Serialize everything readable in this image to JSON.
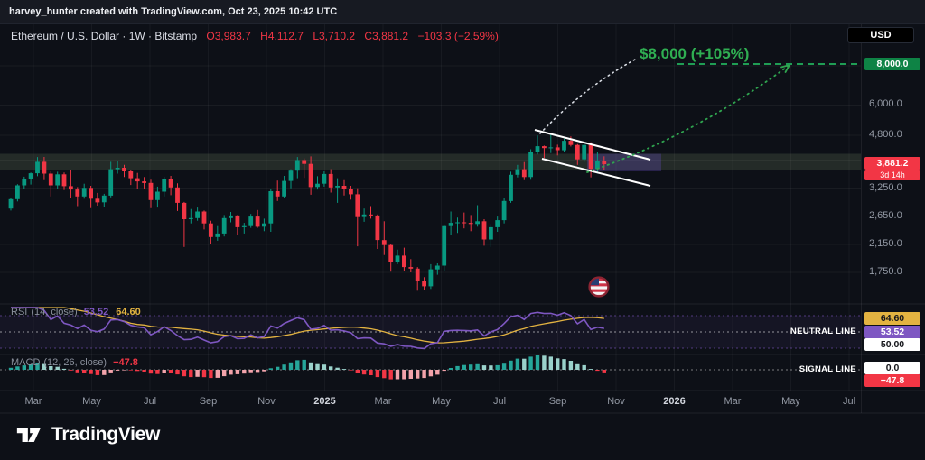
{
  "attribution": "harvey_hunter created with TradingView.com, Oct 23, 2025 10:42 UTC",
  "header": {
    "symbol_title": "Ethereum / U.S. Dollar · 1W · Bitstamp",
    "o_label": "O",
    "o": "3,983.7",
    "h_label": "H",
    "h": "4,112.7",
    "l_label": "L",
    "l": "3,710.2",
    "c_label": "C",
    "c": "3,881.2",
    "change": "−103.3 (−2.59%)",
    "currency_button": "USD"
  },
  "annotations": {
    "price_target": "$8,000 (+105%)",
    "neutral_line": "NEUTRAL LINE",
    "signal_line": "SIGNAL LINE"
  },
  "price_scale": {
    "target_badge": "8,000.0",
    "last_price_badge": "3,881.2",
    "countdown_badge": "3d 14h",
    "ticks": [
      {
        "text": "6,000.0",
        "value": 6000
      },
      {
        "text": "4,800.0",
        "value": 4800
      },
      {
        "text": "3,250.0",
        "value": 3250
      },
      {
        "text": "2,650.0",
        "value": 2650
      },
      {
        "text": "2,150.0",
        "value": 2150
      },
      {
        "text": "1,750.0",
        "value": 1750
      }
    ]
  },
  "rsi_panel": {
    "title": "RSI",
    "params": "(14, close)",
    "value": "53.52",
    "ma_value": "64.60",
    "badge_ma": "64.60",
    "badge_value": "53.52",
    "badge_neutral": "50.00"
  },
  "macd_panel": {
    "title": "MACD",
    "params": "(12, 26, close)",
    "value": "−47.8",
    "badge_zero": "0.0",
    "badge_value": "−47.8"
  },
  "time_axis": {
    "labels": [
      "Mar",
      "May",
      "Jul",
      "Sep",
      "Nov",
      "2025",
      "Mar",
      "May",
      "Jul",
      "Sep",
      "Nov",
      "2026",
      "Mar",
      "May",
      "Jul"
    ],
    "year_indices": [
      5,
      11
    ]
  },
  "footer": {
    "logo_text": "TradingView"
  },
  "colors": {
    "up": "#089981",
    "down": "#f23645",
    "target_green": "#2fae52",
    "dashed_green": "#1f9d54",
    "rsi_purple": "#7e57c2",
    "rsi_ma_yellow": "#e3b341",
    "badge_red": "#f23645",
    "badge_green_bg": "#0e8345"
  },
  "chart_data": {
    "type": "candlestick",
    "symbol": "Ethereum / U.S. Dollar",
    "exchange": "Bitstamp",
    "interval": "1W",
    "scale": "log",
    "y_axis_visible_ticks": [
      8000,
      6000,
      4800,
      3250,
      2650,
      2150,
      1750
    ],
    "x_axis_labels": [
      "Mar",
      "May",
      "Jul",
      "Sep",
      "Nov",
      "2025",
      "Mar",
      "May",
      "Jul",
      "Sep",
      "Nov",
      "2026",
      "Mar",
      "May",
      "Jul"
    ],
    "last_bar": {
      "open": 3983.7,
      "high": 4112.7,
      "low": 3710.2,
      "close": 3881.2,
      "change": -103.3,
      "change_pct": -2.59
    },
    "drawings": {
      "descending_channel": true,
      "target_line_price": 8000,
      "target_label": "$8,000 (+105%)",
      "target_pct_gain": 105,
      "highlight_zone_price_range": [
        3730,
        4190
      ]
    },
    "indicators": {
      "rsi": {
        "period": 14,
        "source": "close",
        "value": 53.52,
        "ma_value": 64.6,
        "levels": [
          70,
          50,
          30
        ]
      },
      "macd": {
        "fast": 12,
        "slow": 26,
        "source": "close",
        "histogram_value": -47.8
      }
    },
    "candles_ohlc": [
      [
        2800,
        3020,
        2760,
        3000
      ],
      [
        3000,
        3350,
        2950,
        3320
      ],
      [
        3320,
        3540,
        3230,
        3480
      ],
      [
        3480,
        3650,
        3340,
        3630
      ],
      [
        3630,
        4090,
        3550,
        3950
      ],
      [
        3950,
        4093,
        3450,
        3620
      ],
      [
        3620,
        3680,
        3060,
        3320
      ],
      [
        3320,
        3670,
        3240,
        3600
      ],
      [
        3600,
        3650,
        3210,
        3300
      ],
      [
        3300,
        3730,
        3020,
        3220
      ],
      [
        3220,
        3280,
        2850,
        3060
      ],
      [
        3060,
        3360,
        3010,
        3260
      ],
      [
        3260,
        3310,
        2810,
        3010
      ],
      [
        3010,
        3140,
        2860,
        2930
      ],
      [
        2930,
        3120,
        2830,
        3080
      ],
      [
        3080,
        3950,
        3040,
        3740
      ],
      [
        3740,
        3980,
        3620,
        3780
      ],
      [
        3780,
        3860,
        3530,
        3680
      ],
      [
        3680,
        3720,
        3330,
        3500
      ],
      [
        3500,
        3640,
        3240,
        3420
      ],
      [
        3420,
        3530,
        3230,
        3380
      ],
      [
        3380,
        3460,
        2810,
        2980
      ],
      [
        2980,
        3290,
        2820,
        3170
      ],
      [
        3170,
        3540,
        3060,
        3490
      ],
      [
        3490,
        3560,
        3090,
        3270
      ],
      [
        3270,
        3370,
        2750,
        2920
      ],
      [
        2920,
        2940,
        2110,
        2590
      ],
      [
        2590,
        2790,
        2510,
        2610
      ],
      [
        2610,
        2820,
        2560,
        2740
      ],
      [
        2740,
        2760,
        2400,
        2510
      ],
      [
        2510,
        2560,
        2150,
        2270
      ],
      [
        2270,
        2460,
        2210,
        2330
      ],
      [
        2330,
        2670,
        2280,
        2610
      ],
      [
        2610,
        2730,
        2530,
        2660
      ],
      [
        2660,
        2670,
        2310,
        2440
      ],
      [
        2440,
        2520,
        2330,
        2460
      ],
      [
        2460,
        2690,
        2430,
        2640
      ],
      [
        2640,
        2770,
        2430,
        2450
      ],
      [
        2450,
        2600,
        2370,
        2510
      ],
      [
        2510,
        3240,
        2360,
        3180
      ],
      [
        3180,
        3440,
        2960,
        3060
      ],
      [
        3060,
        3560,
        3020,
        3430
      ],
      [
        3430,
        3740,
        3250,
        3700
      ],
      [
        3700,
        4090,
        3500,
        4000
      ],
      [
        4000,
        4050,
        3510,
        3890
      ],
      [
        3890,
        4110,
        3100,
        3280
      ],
      [
        3280,
        3550,
        3220,
        3360
      ],
      [
        3360,
        3680,
        3290,
        3610
      ],
      [
        3610,
        3740,
        3150,
        3270
      ],
      [
        3270,
        3500,
        2920,
        3310
      ],
      [
        3310,
        3450,
        3080,
        3230
      ],
      [
        3230,
        3310,
        2990,
        3110
      ],
      [
        3110,
        3250,
        2120,
        2630
      ],
      [
        2630,
        2800,
        2540,
        2680
      ],
      [
        2680,
        2850,
        2600,
        2660
      ],
      [
        2660,
        2680,
        2080,
        2220
      ],
      [
        2220,
        2550,
        1990,
        2140
      ],
      [
        2140,
        2160,
        1760,
        1890
      ],
      [
        1890,
        2070,
        1860,
        1980
      ],
      [
        1980,
        2100,
        1770,
        1820
      ],
      [
        1820,
        1930,
        1750,
        1800
      ],
      [
        1800,
        1820,
        1530,
        1640
      ],
      [
        1640,
        1690,
        1540,
        1580
      ],
      [
        1580,
        1860,
        1550,
        1790
      ],
      [
        1790,
        1870,
        1720,
        1840
      ],
      [
        1840,
        2490,
        1770,
        2460
      ],
      [
        2460,
        2740,
        2310,
        2520
      ],
      [
        2520,
        2620,
        2340,
        2530
      ],
      [
        2530,
        2720,
        2420,
        2520
      ],
      [
        2520,
        2670,
        2370,
        2500
      ],
      [
        2500,
        2870,
        2450,
        2550
      ],
      [
        2550,
        2590,
        2130,
        2230
      ],
      [
        2230,
        2500,
        2110,
        2440
      ],
      [
        2440,
        2640,
        2360,
        2570
      ],
      [
        2570,
        3030,
        2510,
        2960
      ],
      [
        2960,
        3670,
        2920,
        3590
      ],
      [
        3590,
        3860,
        3520,
        3740
      ],
      [
        3740,
        3940,
        3450,
        3530
      ],
      [
        3530,
        4330,
        3460,
        4250
      ],
      [
        4250,
        4790,
        4170,
        4430
      ],
      [
        4430,
        4450,
        4060,
        4370
      ],
      [
        4370,
        4870,
        4210,
        4390
      ],
      [
        4390,
        4480,
        4140,
        4300
      ],
      [
        4300,
        4680,
        4240,
        4610
      ],
      [
        4610,
        4760,
        4420,
        4470
      ],
      [
        4470,
        4500,
        3860,
        4020
      ],
      [
        4020,
        4490,
        3950,
        4470
      ],
      [
        4470,
        4560,
        3520,
        3750
      ],
      [
        3750,
        4230,
        3640,
        3980
      ],
      [
        3983.7,
        4112.7,
        3710.2,
        3881.2
      ]
    ]
  }
}
